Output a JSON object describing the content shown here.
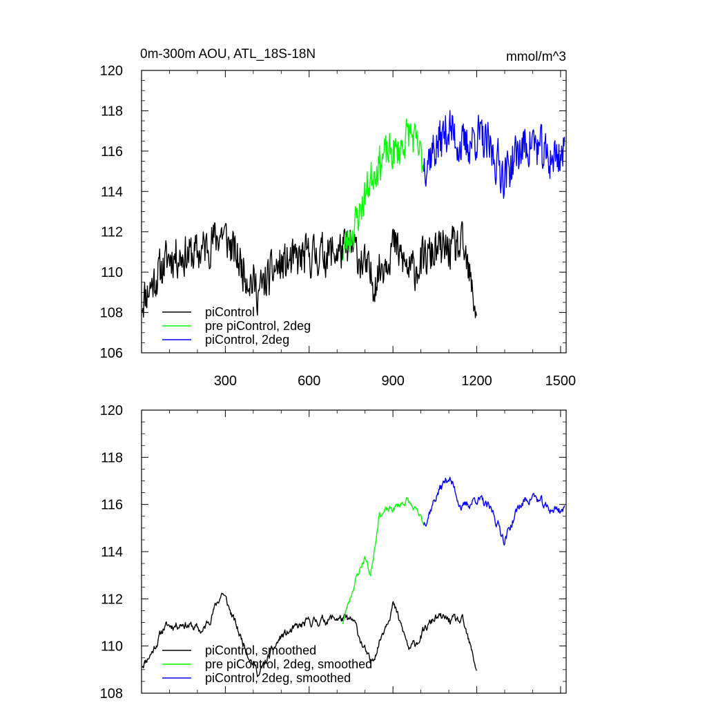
{
  "chart_data": [
    {
      "type": "line",
      "title": "0m-300m AOU, ATL_18S-18N",
      "units": "mmol/m^3",
      "xlim": [
        0,
        1520
      ],
      "ylim": [
        106,
        120
      ],
      "xticks": [
        300,
        600,
        900,
        1200,
        1500
      ],
      "xtick_labels": [
        "300",
        "600",
        "900",
        "1200",
        "1500"
      ],
      "yticks": [
        106,
        108,
        110,
        112,
        114,
        116,
        118,
        120
      ],
      "ytick_labels": [
        "106",
        "108",
        "110",
        "112",
        "114",
        "116",
        "118",
        "120"
      ],
      "legend": [
        "piControl",
        "pre piControl, 2deg",
        "piControl, 2deg"
      ],
      "series": [
        {
          "name": "piControl",
          "color": "#000000",
          "x_start": 1,
          "x_end": 1200,
          "mean": 110.6,
          "amplitude": 1.6,
          "noise": 0.9,
          "seed": 11,
          "anchors": [
            [
              1,
              108.6
            ],
            [
              50,
              109.7
            ],
            [
              100,
              110.8
            ],
            [
              200,
              110.9
            ],
            [
              290,
              112.0
            ],
            [
              350,
              110.5
            ],
            [
              420,
              109.0
            ],
            [
              480,
              110.2
            ],
            [
              600,
              110.8
            ],
            [
              700,
              111.0
            ],
            [
              760,
              111.2
            ],
            [
              830,
              109.5
            ],
            [
              900,
              111.4
            ],
            [
              960,
              110.0
            ],
            [
              1050,
              111.0
            ],
            [
              1150,
              111.2
            ],
            [
              1200,
              108.0
            ]
          ]
        },
        {
          "name": "pre piControl, 2deg",
          "color": "#00ff00",
          "x_start": 720,
          "x_end": 1010,
          "mean": 115.0,
          "amplitude": 1.2,
          "noise": 0.8,
          "seed": 23,
          "anchors": [
            [
              720,
              111.0
            ],
            [
              760,
              112.2
            ],
            [
              800,
              113.8
            ],
            [
              830,
              115.0
            ],
            [
              870,
              115.8
            ],
            [
              920,
              116.0
            ],
            [
              960,
              117.0
            ],
            [
              1010,
              115.4
            ]
          ]
        },
        {
          "name": "piControl, 2deg",
          "color": "#0000ff",
          "x_start": 1010,
          "x_end": 1515,
          "mean": 116.0,
          "amplitude": 1.5,
          "noise": 1.0,
          "seed": 37,
          "anchors": [
            [
              1010,
              115.5
            ],
            [
              1060,
              116.3
            ],
            [
              1100,
              117.2
            ],
            [
              1150,
              116.1
            ],
            [
              1200,
              116.8
            ],
            [
              1260,
              115.8
            ],
            [
              1300,
              114.8
            ],
            [
              1350,
              116.0
            ],
            [
              1400,
              116.5
            ],
            [
              1450,
              115.6
            ],
            [
              1515,
              115.9
            ]
          ]
        }
      ]
    },
    {
      "type": "line",
      "title": "",
      "units": "",
      "xlim": [
        0,
        1520
      ],
      "ylim": [
        108,
        120
      ],
      "xticks": [
        300,
        600,
        900,
        1200,
        1500
      ],
      "xtick_labels": [],
      "yticks": [
        108,
        110,
        112,
        114,
        116,
        118,
        120
      ],
      "ytick_labels": [
        "108",
        "110",
        "112",
        "114",
        "116",
        "118",
        "120"
      ],
      "legend": [
        "piControl, smoothed",
        "pre piControl, 2deg, smoothed",
        "piControl, 2deg, smoothed"
      ],
      "series": [
        {
          "name": "piControl, smoothed",
          "color": "#000000",
          "x_start": 1,
          "x_end": 1200,
          "mean": 110.5,
          "amplitude": 1.2,
          "noise": 0.35,
          "seed": 11,
          "anchors": [
            [
              1,
              109.2
            ],
            [
              40,
              109.8
            ],
            [
              80,
              110.8
            ],
            [
              150,
              111.0
            ],
            [
              220,
              110.6
            ],
            [
              290,
              112.3
            ],
            [
              350,
              110.5
            ],
            [
              420,
              108.8
            ],
            [
              500,
              110.4
            ],
            [
              600,
              111.0
            ],
            [
              700,
              111.2
            ],
            [
              760,
              111.0
            ],
            [
              820,
              109.2
            ],
            [
              900,
              111.8
            ],
            [
              960,
              109.8
            ],
            [
              1050,
              111.2
            ],
            [
              1150,
              111.0
            ],
            [
              1200,
              109.0
            ]
          ]
        },
        {
          "name": "pre piControl, 2deg, smoothed",
          "color": "#00ff00",
          "x_start": 720,
          "x_end": 1010,
          "mean": 115.0,
          "amplitude": 0.8,
          "noise": 0.3,
          "seed": 23,
          "anchors": [
            [
              720,
              111.0
            ],
            [
              760,
              112.6
            ],
            [
              800,
              113.8
            ],
            [
              820,
              113.0
            ],
            [
              850,
              115.6
            ],
            [
              900,
              115.8
            ],
            [
              950,
              116.2
            ],
            [
              1010,
              115.2
            ]
          ]
        },
        {
          "name": "piControl, 2deg, smoothed",
          "color": "#0000ff",
          "x_start": 1010,
          "x_end": 1515,
          "mean": 116.0,
          "amplitude": 1.0,
          "noise": 0.4,
          "seed": 37,
          "anchors": [
            [
              1010,
              115.2
            ],
            [
              1060,
              116.5
            ],
            [
              1100,
              117.2
            ],
            [
              1150,
              115.8
            ],
            [
              1200,
              116.3
            ],
            [
              1260,
              115.6
            ],
            [
              1300,
              114.5
            ],
            [
              1350,
              115.9
            ],
            [
              1400,
              116.4
            ],
            [
              1450,
              115.8
            ],
            [
              1515,
              115.8
            ]
          ]
        }
      ]
    }
  ]
}
